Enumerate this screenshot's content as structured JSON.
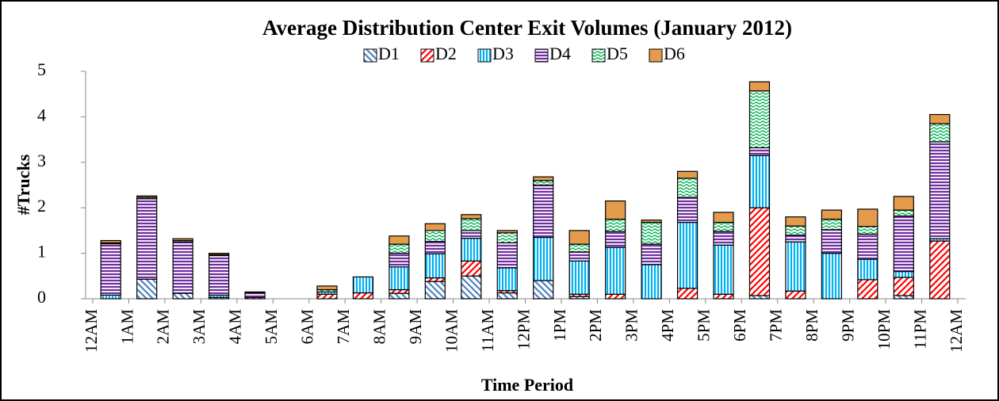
{
  "chart_data": {
    "type": "stacked_bar",
    "title": "Average Distribution Center Exit Volumes (January 2012)",
    "x_label": "Time Period",
    "y_label": "#Trucks",
    "xtick_labels": [
      "12AM",
      "1AM",
      "2AM",
      "3AM",
      "4AM",
      "5AM",
      "6AM",
      "7AM",
      "8AM",
      "9AM",
      "10AM",
      "11AM",
      "12PM",
      "1PM",
      "2PM",
      "3PM",
      "4PM",
      "5PM",
      "6PM",
      "7PM",
      "8PM",
      "9PM",
      "10PM",
      "11PM",
      "12AM"
    ],
    "ylim": [
      0,
      5
    ],
    "yticks": [
      0,
      1,
      2,
      3,
      4,
      5
    ],
    "legend": "top",
    "series": [
      {
        "name": "D1",
        "color": "#4f81bd",
        "pattern": "diagonal-left",
        "values": [
          0,
          0.43,
          0.12,
          0.03,
          0,
          0,
          0,
          0,
          0.12,
          0.38,
          0.5,
          0.13,
          0.4,
          0.05,
          0,
          0,
          0,
          0,
          0.07,
          0,
          0,
          0,
          0.07,
          0
        ]
      },
      {
        "name": "D2",
        "color": "#ff0000",
        "pattern": "diagonal-right",
        "values": [
          0,
          0,
          0,
          0,
          0.03,
          0,
          0.1,
          0.13,
          0.08,
          0.08,
          0.33,
          0.05,
          0,
          0.05,
          0.1,
          0,
          0.23,
          0.1,
          1.93,
          0.17,
          0,
          0.42,
          0.4,
          1.27
        ]
      },
      {
        "name": "D3",
        "color": "#00b0f0",
        "pattern": "vertical",
        "values": [
          0.08,
          0,
          0,
          0.05,
          0,
          0,
          0.05,
          0.35,
          0.5,
          0.53,
          0.5,
          0.5,
          0.95,
          0.73,
          1.03,
          0.75,
          1.45,
          1.08,
          1.15,
          1.08,
          1.0,
          0.45,
          0.13,
          0.05
        ]
      },
      {
        "name": "D4",
        "color": "#7030a0",
        "pattern": "horizontal",
        "values": [
          1.13,
          1.77,
          1.13,
          0.87,
          0.1,
          0,
          0,
          0,
          0.3,
          0.27,
          0.17,
          0.55,
          1.15,
          0.2,
          0.35,
          0.45,
          0.55,
          0.3,
          0.17,
          0.15,
          0.52,
          0.55,
          1.22,
          2.13
        ]
      },
      {
        "name": "D5",
        "color": "#00b050",
        "pattern": "wave",
        "values": [
          0.02,
          0.03,
          0.03,
          0.02,
          0,
          0,
          0.05,
          0,
          0.2,
          0.24,
          0.26,
          0.22,
          0.1,
          0.17,
          0.27,
          0.48,
          0.42,
          0.2,
          1.25,
          0.2,
          0.23,
          0.17,
          0.13,
          0.4
        ]
      },
      {
        "name": "D6",
        "color": "#e59b4c",
        "pattern": "solid",
        "values": [
          0.05,
          0.03,
          0.04,
          0.03,
          0.02,
          0,
          0.08,
          0,
          0.18,
          0.15,
          0.09,
          0.05,
          0.08,
          0.3,
          0.4,
          0.05,
          0.15,
          0.22,
          0.2,
          0.2,
          0.2,
          0.38,
          0.3,
          0.2
        ]
      }
    ]
  }
}
